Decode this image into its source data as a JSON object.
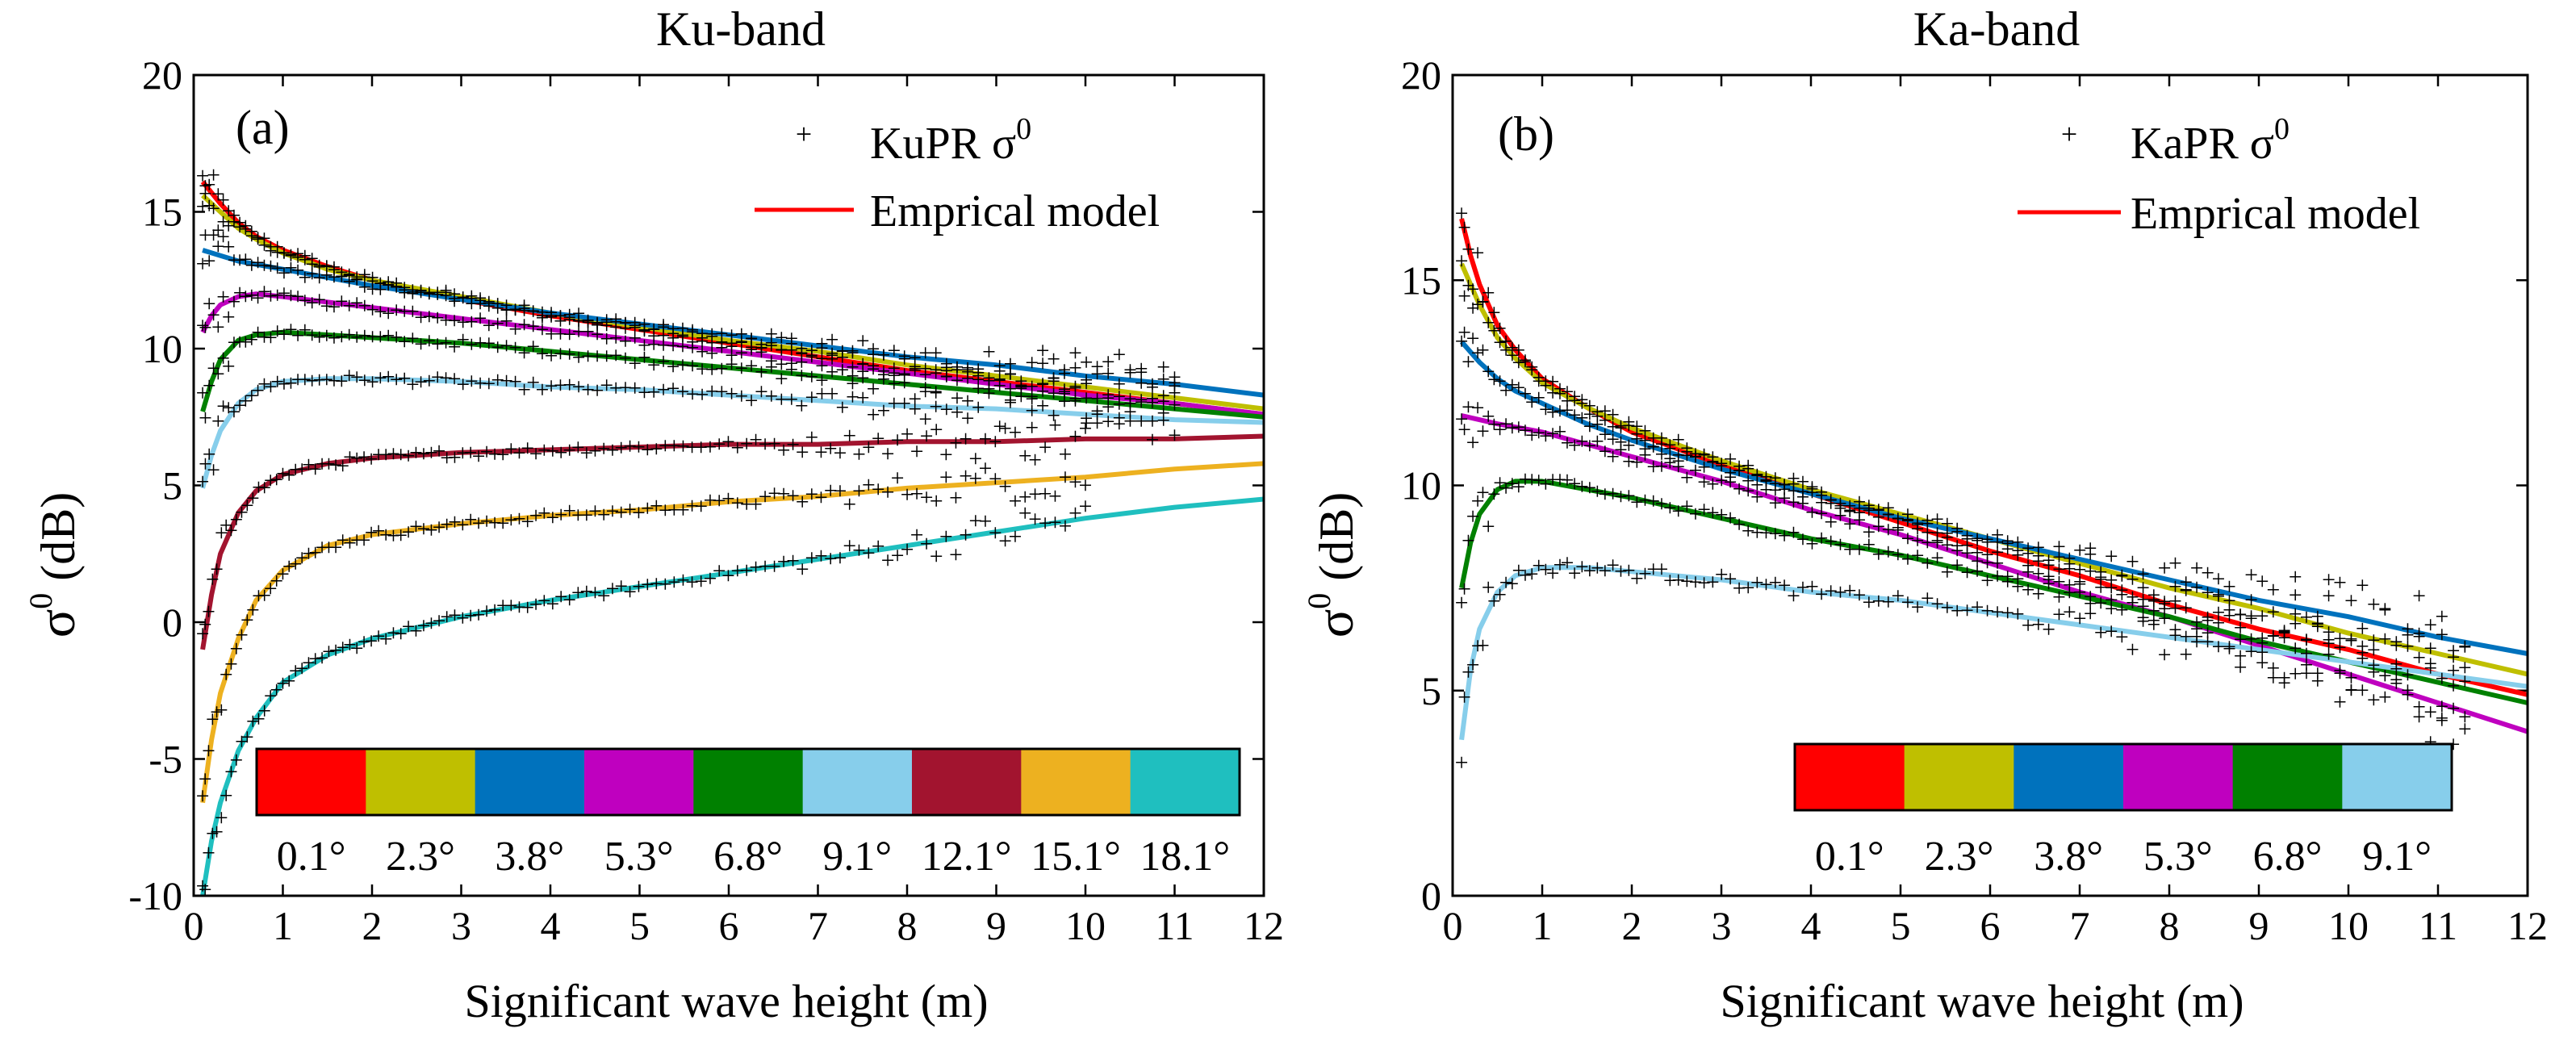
{
  "figure": {
    "colors": [
      "#ff0000",
      "#bfbf00",
      "#0072bd",
      "#bf00bf",
      "#008000",
      "#87ceeb",
      "#a2142f",
      "#edb120",
      "#1fbfbf"
    ]
  },
  "chart_data": [
    {
      "type": "line",
      "panel_label": "(a)",
      "title": "Ku-band",
      "xlabel": "Significant wave height (m)",
      "ylabel_symbol": "σ",
      "ylabel_sup": "0",
      "ylabel_unit": " (dB)",
      "xlim": [
        0,
        12
      ],
      "ylim": [
        -10,
        20
      ],
      "xticks": [
        0,
        1,
        2,
        3,
        4,
        5,
        6,
        7,
        8,
        9,
        10,
        11,
        12
      ],
      "yticks": [
        -10,
        -5,
        0,
        5,
        10,
        15,
        20
      ],
      "legend": {
        "points_label": "KuPR σ",
        "points_sup": "0",
        "line_label": "Emprical model",
        "position": "top-right"
      },
      "incidence_angles": [
        "0.1°",
        "2.3°",
        "3.8°",
        "5.3°",
        "6.8°",
        "9.1°",
        "12.1°",
        "15.1°",
        "18.1°"
      ],
      "series_model": [
        {
          "name": "0.1°",
          "x": [
            0.1,
            0.2,
            0.3,
            0.5,
            0.7,
            1,
            1.5,
            2,
            3,
            4,
            5,
            6,
            7,
            8,
            9,
            10,
            11,
            12
          ],
          "y": [
            16.1,
            15.7,
            15.3,
            14.6,
            14.1,
            13.6,
            13.0,
            12.5,
            11.8,
            11.2,
            10.7,
            10.2,
            9.7,
            9.2,
            8.8,
            8.4,
            8.0,
            7.6
          ]
        },
        {
          "name": "2.3°",
          "x": [
            0.1,
            0.2,
            0.3,
            0.5,
            0.7,
            1,
            1.5,
            2,
            3,
            4,
            5,
            6,
            7,
            8,
            9,
            10,
            11,
            12
          ],
          "y": [
            15.6,
            15.3,
            15.0,
            14.4,
            14.0,
            13.5,
            12.9,
            12.5,
            11.9,
            11.3,
            10.8,
            10.3,
            9.9,
            9.4,
            9.0,
            8.6,
            8.2,
            7.8
          ]
        },
        {
          "name": "3.8°",
          "x": [
            0.1,
            0.3,
            0.5,
            1,
            1.5,
            2,
            3,
            4,
            5,
            6,
            7,
            8,
            9,
            10,
            11,
            12
          ],
          "y": [
            13.6,
            13.4,
            13.2,
            12.9,
            12.6,
            12.3,
            11.8,
            11.3,
            10.9,
            10.5,
            10.1,
            9.7,
            9.4,
            9.0,
            8.7,
            8.3
          ]
        },
        {
          "name": "5.3°",
          "x": [
            0.1,
            0.2,
            0.3,
            0.5,
            0.7,
            1,
            1.5,
            2,
            3,
            4,
            5,
            6,
            7,
            8,
            9,
            10,
            11,
            12
          ],
          "y": [
            10.6,
            11.2,
            11.6,
            11.9,
            12.0,
            11.9,
            11.7,
            11.5,
            11.1,
            10.7,
            10.3,
            9.9,
            9.5,
            9.1,
            8.7,
            8.3,
            8.0,
            7.6
          ]
        },
        {
          "name": "6.8°",
          "x": [
            0.1,
            0.2,
            0.3,
            0.5,
            0.7,
            1,
            1.5,
            2,
            3,
            4,
            5,
            6,
            7,
            8,
            9,
            10,
            11,
            12
          ],
          "y": [
            7.7,
            8.8,
            9.6,
            10.3,
            10.5,
            10.6,
            10.5,
            10.4,
            10.2,
            9.9,
            9.6,
            9.3,
            9.0,
            8.7,
            8.4,
            8.1,
            7.8,
            7.5
          ]
        },
        {
          "name": "9.1°",
          "x": [
            0.1,
            0.2,
            0.3,
            0.5,
            0.7,
            1,
            1.5,
            2,
            3,
            4,
            5,
            6,
            7,
            8,
            9,
            10,
            11,
            12
          ],
          "y": [
            4.9,
            6.1,
            7.0,
            8.0,
            8.5,
            8.8,
            8.9,
            8.9,
            8.8,
            8.6,
            8.5,
            8.3,
            8.1,
            7.9,
            7.8,
            7.6,
            7.4,
            7.3
          ]
        },
        {
          "name": "12.1°",
          "x": [
            0.1,
            0.2,
            0.3,
            0.5,
            0.7,
            1,
            1.5,
            2,
            3,
            4,
            5,
            6,
            7,
            8,
            9,
            10,
            11,
            12
          ],
          "y": [
            -1.0,
            1.0,
            2.5,
            4.0,
            4.8,
            5.4,
            5.8,
            6.0,
            6.2,
            6.3,
            6.4,
            6.5,
            6.5,
            6.6,
            6.6,
            6.7,
            6.7,
            6.8
          ]
        },
        {
          "name": "15.1°",
          "x": [
            0.1,
            0.2,
            0.3,
            0.5,
            0.7,
            1,
            1.5,
            2,
            3,
            4,
            5,
            6,
            7,
            8,
            9,
            10,
            11,
            12
          ],
          "y": [
            -6.6,
            -4.3,
            -2.6,
            -0.6,
            0.8,
            1.9,
            2.8,
            3.2,
            3.6,
            3.9,
            4.1,
            4.4,
            4.6,
            4.9,
            5.1,
            5.3,
            5.6,
            5.8
          ]
        },
        {
          "name": "18.1°",
          "x": [
            0.1,
            0.2,
            0.3,
            0.5,
            0.7,
            1,
            1.5,
            2,
            3,
            4,
            5,
            6,
            7,
            8,
            9,
            10,
            11,
            12
          ],
          "y": [
            -10.0,
            -8.0,
            -6.6,
            -4.7,
            -3.5,
            -2.2,
            -1.2,
            -0.6,
            0.2,
            0.8,
            1.3,
            1.8,
            2.3,
            2.8,
            3.3,
            3.8,
            4.2,
            4.5
          ]
        }
      ]
    },
    {
      "type": "line",
      "panel_label": "(b)",
      "title": "Ka-band",
      "xlabel": "Significant wave height (m)",
      "ylabel_symbol": "σ",
      "ylabel_sup": "0",
      "ylabel_unit": " (dB)",
      "xlim": [
        0,
        12
      ],
      "ylim": [
        0,
        20
      ],
      "xticks": [
        0,
        1,
        2,
        3,
        4,
        5,
        6,
        7,
        8,
        9,
        10,
        11,
        12
      ],
      "yticks": [
        0,
        5,
        10,
        15,
        20
      ],
      "legend": {
        "points_label": "KaPR σ",
        "points_sup": "0",
        "line_label": "Emprical model",
        "position": "top-right"
      },
      "incidence_angles": [
        "0.1°",
        "2.3°",
        "3.8°",
        "5.3°",
        "6.8°",
        "9.1°"
      ],
      "series_model": [
        {
          "name": "0.1°",
          "x": [
            0.1,
            0.2,
            0.3,
            0.5,
            0.7,
            1,
            1.5,
            2,
            3,
            4,
            5,
            6,
            7,
            8,
            9,
            10,
            11,
            12
          ],
          "y": [
            16.5,
            15.6,
            14.9,
            13.9,
            13.3,
            12.6,
            11.9,
            11.3,
            10.5,
            9.8,
            9.1,
            8.4,
            7.8,
            7.1,
            6.5,
            6.0,
            5.4,
            4.9
          ]
        },
        {
          "name": "2.3°",
          "x": [
            0.1,
            0.2,
            0.3,
            0.5,
            0.7,
            1,
            1.5,
            2,
            3,
            4,
            5,
            6,
            7,
            8,
            9,
            10,
            11,
            12
          ],
          "y": [
            15.4,
            14.9,
            14.4,
            13.6,
            13.1,
            12.5,
            11.9,
            11.4,
            10.6,
            9.9,
            9.3,
            8.7,
            8.1,
            7.5,
            7.0,
            6.4,
            5.9,
            5.4
          ]
        },
        {
          "name": "3.8°",
          "x": [
            0.1,
            0.3,
            0.5,
            0.7,
            1,
            1.5,
            2,
            3,
            4,
            5,
            6,
            7,
            8,
            9,
            10,
            11,
            12
          ],
          "y": [
            13.5,
            13.0,
            12.6,
            12.3,
            12.0,
            11.5,
            11.1,
            10.4,
            9.8,
            9.2,
            8.7,
            8.2,
            7.7,
            7.2,
            6.8,
            6.3,
            5.9
          ]
        },
        {
          "name": "5.3°",
          "x": [
            0.1,
            0.5,
            1,
            1.5,
            2,
            3,
            4,
            5,
            6,
            7,
            8,
            9,
            10,
            11,
            12
          ],
          "y": [
            11.7,
            11.5,
            11.3,
            11.0,
            10.7,
            10.1,
            9.4,
            8.8,
            8.1,
            7.4,
            6.8,
            6.1,
            5.4,
            4.7,
            4.0
          ]
        },
        {
          "name": "6.8°",
          "x": [
            0.1,
            0.2,
            0.3,
            0.5,
            0.7,
            1,
            1.5,
            2,
            3,
            4,
            5,
            6,
            7,
            8,
            9,
            10,
            11,
            12
          ],
          "y": [
            7.5,
            8.6,
            9.3,
            9.9,
            10.1,
            10.1,
            9.9,
            9.7,
            9.2,
            8.7,
            8.3,
            7.8,
            7.3,
            6.8,
            6.2,
            5.7,
            5.2,
            4.7
          ]
        },
        {
          "name": "9.1°",
          "x": [
            0.1,
            0.2,
            0.3,
            0.5,
            0.7,
            1,
            1.5,
            2,
            3,
            4,
            5,
            6,
            7,
            8,
            9,
            10,
            11,
            12
          ],
          "y": [
            3.8,
            5.5,
            6.5,
            7.4,
            7.8,
            8.0,
            8.0,
            7.9,
            7.7,
            7.4,
            7.2,
            6.9,
            6.6,
            6.3,
            6.0,
            5.7,
            5.4,
            5.1
          ]
        }
      ]
    }
  ]
}
